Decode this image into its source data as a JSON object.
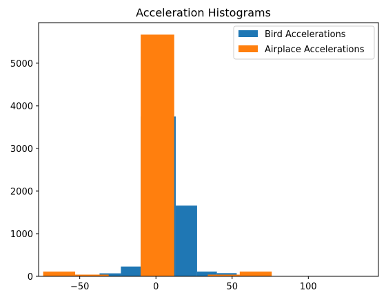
{
  "chart_data": {
    "type": "bar",
    "title": "Acceleration Histograms",
    "xlabel": "",
    "ylabel": "",
    "xlim": [
      -77,
      146
    ],
    "ylim": [
      0,
      5950
    ],
    "x_ticks": [
      -50,
      0,
      50,
      100
    ],
    "y_ticks": [
      0,
      1000,
      2000,
      3000,
      4000,
      5000
    ],
    "legend_position": "top-right",
    "series": [
      {
        "name": "Bird Accelerations",
        "color": "#1f77b4",
        "bins": [
          {
            "x0": -37,
            "x1": -23,
            "value": 70
          },
          {
            "x0": -23,
            "x1": -10,
            "value": 230
          },
          {
            "x0": -10,
            "x1": 13,
            "value": 3750
          },
          {
            "x0": 13,
            "x1": 27,
            "value": 1660
          },
          {
            "x0": 27,
            "x1": 40,
            "value": 110
          },
          {
            "x0": 40,
            "x1": 53,
            "value": 75
          },
          {
            "x0": 53,
            "x1": 66,
            "value": 20
          },
          {
            "x0": 66,
            "x1": 80,
            "value": 5
          },
          {
            "x0": 80,
            "x1": 93,
            "value": 3
          },
          {
            "x0": 93,
            "x1": 106,
            "value": 2
          },
          {
            "x0": 106,
            "x1": 119,
            "value": 2
          },
          {
            "x0": 119,
            "x1": 133,
            "value": 1
          },
          {
            "x0": 133,
            "x1": 146,
            "value": 1
          }
        ]
      },
      {
        "name": "Airplace Accelerations",
        "color": "#ff7f0e",
        "bins": [
          {
            "x0": -74,
            "x1": -53,
            "value": 110
          },
          {
            "x0": -53,
            "x1": -31,
            "value": 40
          },
          {
            "x0": -31,
            "x1": -10,
            "value": 0
          },
          {
            "x0": -10,
            "x1": 12,
            "value": 5670
          },
          {
            "x0": 12,
            "x1": 34,
            "value": 0
          },
          {
            "x0": 34,
            "x1": 55,
            "value": 40
          },
          {
            "x0": 55,
            "x1": 76,
            "value": 110
          }
        ]
      }
    ]
  }
}
